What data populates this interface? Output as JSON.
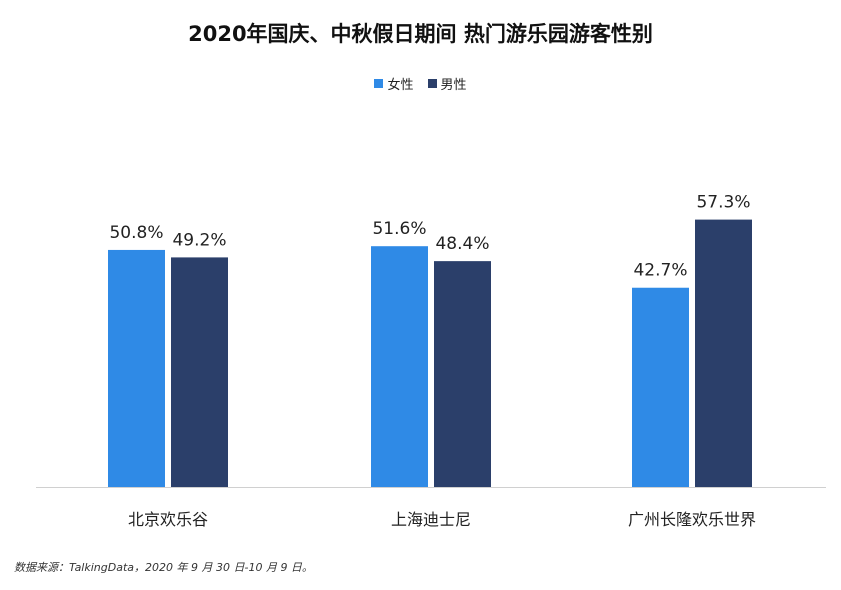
{
  "title": "2020年国庆、中秋假日期间  热门游乐园游客性别",
  "source_note": "数据来源：TalkingData，2020 年 9 月 30 日-10 月 9 日。",
  "colors": {
    "female": "#2f8ae6",
    "male": "#2b3f6a"
  },
  "chart_data": {
    "type": "bar",
    "categories": [
      "北京欢乐谷",
      "上海迪士尼",
      "广州长隆欢乐世界"
    ],
    "series": [
      {
        "name": "女性",
        "values": [
          50.8,
          51.6,
          42.7
        ],
        "labels": [
          "50.8%",
          "51.6%",
          "42.7%"
        ]
      },
      {
        "name": "男性",
        "values": [
          49.2,
          48.4,
          57.3
        ],
        "labels": [
          "49.2%",
          "48.4%",
          "57.3%"
        ]
      }
    ],
    "ylim": [
      0,
      75
    ],
    "grid": false,
    "legend_position": "top-center"
  }
}
